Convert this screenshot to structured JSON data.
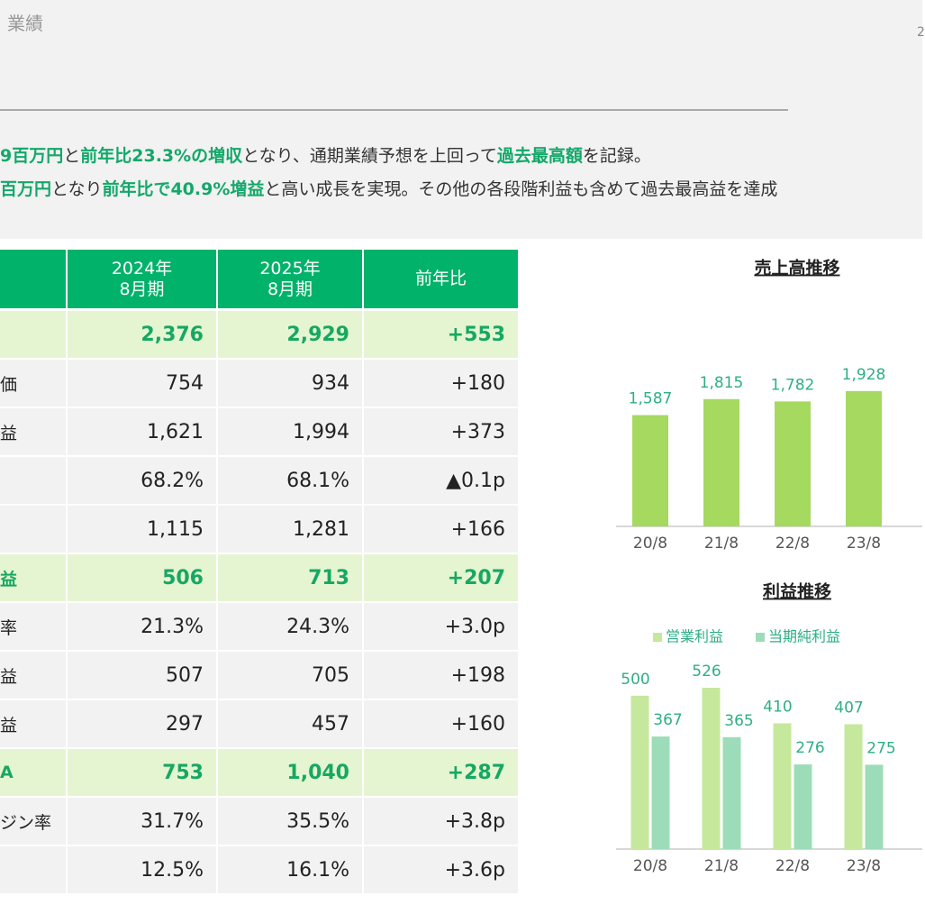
{
  "header": {
    "title": "業績",
    "page": "2"
  },
  "summary": [
    [
      {
        "text": "9百万円",
        "em": true
      },
      {
        "text": "と"
      },
      {
        "text": "前年比23.3%の増収",
        "em": true
      },
      {
        "text": "となり、通期業績予想を上回って"
      },
      {
        "text": "過去最高額",
        "em": true
      },
      {
        "text": "を記録。"
      }
    ],
    [
      {
        "text": "百万円",
        "em": true
      },
      {
        "text": "となり"
      },
      {
        "text": "前年比で40.9%増益",
        "em": true
      },
      {
        "text": "と高い成長を実現。その他の各段階利益も含めて過去最高益を達成"
      }
    ]
  ],
  "table": {
    "columns": [
      null,
      "2024年\n8月期",
      "2025年\n8月期",
      "前年比"
    ],
    "rows": [
      [
        null,
        "2,376",
        "2,929",
        "+553"
      ],
      [
        "価",
        "754",
        "934",
        "+180"
      ],
      [
        "益",
        "1,621",
        "1,994",
        "+373"
      ],
      [
        null,
        "68.2%",
        "68.1%",
        "▲0.1p"
      ],
      [
        null,
        "1,115",
        "1,281",
        "+166"
      ],
      [
        "益",
        "506",
        "713",
        "+207"
      ],
      [
        "率",
        "21.3%",
        "24.3%",
        "+3.0p"
      ],
      [
        "益",
        "507",
        "705",
        "+198"
      ],
      [
        "益",
        "297",
        "457",
        "+160"
      ],
      [
        "A",
        "753",
        "1,040",
        "+287"
      ],
      [
        "ジン率",
        "31.7%",
        "35.5%",
        "+3.8p"
      ],
      [
        null,
        "12.5%",
        "16.1%",
        "+3.6p"
      ]
    ],
    "highlight_rows": [
      0,
      5,
      9
    ]
  },
  "chart_data": [
    {
      "type": "bar",
      "title": "売上高推移",
      "categories": [
        "20/8",
        "21/8",
        "22/8",
        "23/8"
      ],
      "series": [
        {
          "color": "#a5d95f",
          "values": [
            1587,
            1815,
            1782,
            1928
          ],
          "value_labels": [
            "1,587",
            "1,815",
            "1,782",
            "1,928"
          ]
        }
      ]
    },
    {
      "type": "bar",
      "title": "利益推移",
      "categories": [
        "20/8",
        "21/8",
        "22/8",
        "23/8"
      ],
      "series": [
        {
          "name": "営業利益",
          "color": "#c6e89c",
          "values": [
            500,
            526,
            410,
            407
          ]
        },
        {
          "name": "当期純利益",
          "color": "#9ddcb9",
          "values": [
            367,
            365,
            276,
            275
          ]
        }
      ]
    }
  ]
}
